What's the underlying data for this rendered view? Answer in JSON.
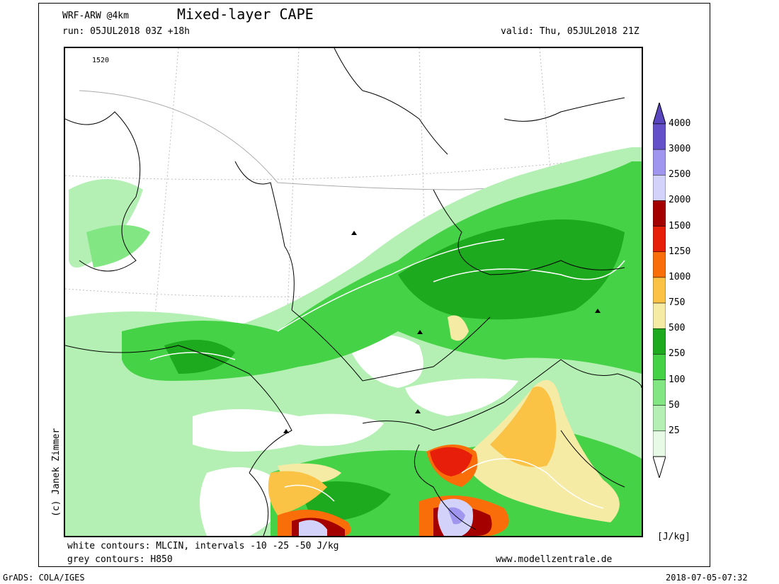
{
  "header": {
    "model": "WRF-ARW @4km",
    "title": "Mixed-layer CAPE",
    "run": "run: 05JUL2018 03Z +18h",
    "valid": "valid: Thu, 05JUL2018 21Z"
  },
  "map": {
    "contour_label": "1520"
  },
  "colorbar": {
    "unit": "[J/kg]",
    "levels": [
      {
        "label": "25",
        "color": "#e6fae6"
      },
      {
        "label": "50",
        "color": "#b4f0b4"
      },
      {
        "label": "100",
        "color": "#82e682"
      },
      {
        "label": "250",
        "color": "#46d246"
      },
      {
        "label": "500",
        "color": "#1eaa1e"
      },
      {
        "label": "750",
        "color": "#f5eba5"
      },
      {
        "label": "1000",
        "color": "#fac346"
      },
      {
        "label": "1250",
        "color": "#fa6e0a"
      },
      {
        "label": "1500",
        "color": "#e61e0a"
      },
      {
        "label": "2000",
        "color": "#a50000"
      },
      {
        "label": "2500",
        "color": "#d2d2fa"
      },
      {
        "label": "3000",
        "color": "#a096f0"
      },
      {
        "label": "4000",
        "color": "#6450c8"
      }
    ],
    "top_color": "#5a46be"
  },
  "footer": {
    "line1": "white contours: MLCIN, intervals -10 -25 -50 J/kg",
    "line2": "grey contours: H850",
    "website": "www.modellzentrale.de",
    "credit": "(c) Janek Zimmer",
    "grads": "GrADS: COLA/IGES",
    "timestamp": "2018-07-05-07:32"
  }
}
